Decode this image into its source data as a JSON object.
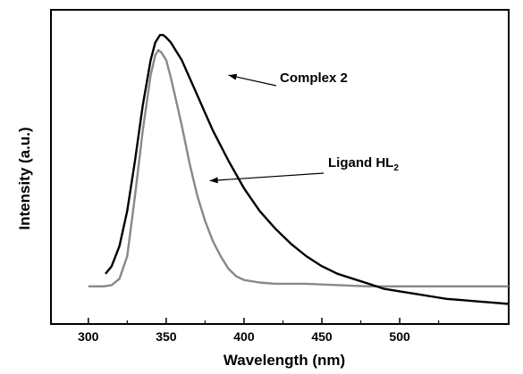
{
  "chart_data": {
    "type": "line",
    "title": "",
    "xlabel": "Wavelength (nm)",
    "ylabel": "Intensity (a.u.)",
    "xlim": [
      276,
      570
    ],
    "ylim": [
      -0.15,
      1.1
    ],
    "x_ticks": [
      300,
      350,
      400,
      450,
      500
    ],
    "x_tick_labels": [
      "300",
      "350",
      "400",
      "450",
      "500"
    ],
    "y_ticks_shown": false,
    "grid": false,
    "legend": "none",
    "series": [
      {
        "color": "#000000",
        "x": [
          311,
          315,
          320,
          325,
          330,
          335,
          340,
          343,
          346,
          348,
          350,
          353,
          356,
          360,
          365,
          370,
          375,
          380,
          390,
          400,
          410,
          420,
          430,
          440,
          450,
          460,
          470,
          480,
          490,
          500,
          510,
          520,
          530,
          540,
          550,
          560,
          570
        ],
        "y": [
          0.05,
          0.08,
          0.16,
          0.3,
          0.5,
          0.72,
          0.9,
          0.97,
          1.0,
          1.0,
          0.99,
          0.97,
          0.94,
          0.9,
          0.83,
          0.76,
          0.69,
          0.62,
          0.5,
          0.39,
          0.3,
          0.23,
          0.17,
          0.12,
          0.08,
          0.05,
          0.03,
          0.01,
          -0.01,
          -0.02,
          -0.03,
          -0.04,
          -0.05,
          -0.055,
          -0.06,
          -0.065,
          -0.07
        ]
      },
      {
        "color": "#888888",
        "x": [
          300,
          305,
          310,
          315,
          320,
          325,
          330,
          335,
          340,
          343,
          345,
          347,
          350,
          353,
          356,
          360,
          365,
          370,
          375,
          380,
          385,
          390,
          395,
          400,
          410,
          420,
          440,
          460,
          480,
          500,
          520,
          540,
          560,
          570
        ],
        "y": [
          0.0,
          0.0,
          0.0,
          0.005,
          0.03,
          0.12,
          0.36,
          0.62,
          0.84,
          0.92,
          0.94,
          0.93,
          0.9,
          0.83,
          0.75,
          0.64,
          0.49,
          0.36,
          0.26,
          0.18,
          0.12,
          0.07,
          0.04,
          0.025,
          0.015,
          0.01,
          0.01,
          0.005,
          0.0,
          0.0,
          0.0,
          0.0,
          0.0,
          0.0
        ]
      }
    ],
    "annotations": [
      {
        "text": "Complex 2",
        "sub": "",
        "points_to_x": 390,
        "points_to_y": 0.84
      },
      {
        "text": "Ligand HL",
        "sub": "2",
        "points_to_x": 378,
        "points_to_y": 0.42
      }
    ]
  }
}
